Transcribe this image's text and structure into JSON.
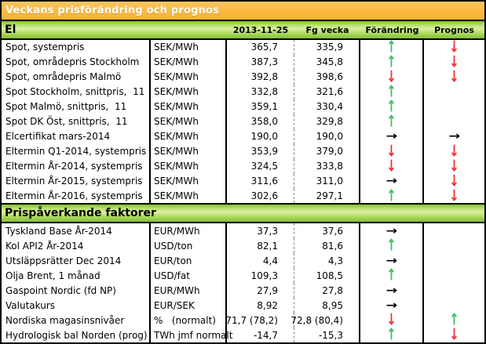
{
  "title": "Veckans prisförändring och prognos",
  "columns": {
    "date": "2013-11-25",
    "prev": "Fg vecka",
    "change": "Förändring",
    "forecast": "Prognos"
  },
  "arrows": {
    "up": "↑",
    "down": "↓",
    "right": "→"
  },
  "colors": {
    "header_orange": "#FBB83C",
    "section_green": "#9CCB3B",
    "arrow_up_green": "#3FBF63",
    "arrow_down_red": "#F13131",
    "arrow_right_black": "#000000"
  },
  "sections": [
    {
      "header": "El",
      "rows": [
        {
          "label": "Spot, systempris",
          "unit": "SEK/MWh",
          "current": "365,7",
          "previous": "335,9",
          "change": "up",
          "forecast": "down"
        },
        {
          "label": "Spot, områdepris Stockholm",
          "unit": "SEK/MWh",
          "current": "387,3",
          "previous": "345,8",
          "change": "up",
          "forecast": "down"
        },
        {
          "label": "Spot, områdepris Malmö",
          "unit": "SEK/MWh",
          "current": "392,8",
          "previous": "398,6",
          "change": "down",
          "forecast": "down"
        },
        {
          "label": "Spot Stockholm, snittpris,  11",
          "unit": "SEK/MWh",
          "current": "332,8",
          "previous": "321,6",
          "change": "up",
          "forecast": ""
        },
        {
          "label": "Spot Malmö, snittpris,  11",
          "unit": "SEK/MWh",
          "current": "359,1",
          "previous": "330,4",
          "change": "up",
          "forecast": ""
        },
        {
          "label": "Spot DK Öst, snittpris,  11",
          "unit": "SEK/MWh",
          "current": "358,0",
          "previous": "329,8",
          "change": "up",
          "forecast": ""
        },
        {
          "label": "Elcertifikat mars-2014",
          "unit": "SEK/MWh",
          "current": "190,0",
          "previous": "190,0",
          "change": "right",
          "forecast": "right"
        },
        {
          "label": "Eltermin Q1-2014, systempris",
          "unit": "SEK/MWh",
          "current": "353,9",
          "previous": "379,0",
          "change": "down",
          "forecast": "down"
        },
        {
          "label": "Eltermin År-2014, systempris",
          "unit": "SEK/MWh",
          "current": "324,5",
          "previous": "333,8",
          "change": "down",
          "forecast": "down"
        },
        {
          "label": "Eltermin År-2015, systempris",
          "unit": "SEK/MWh",
          "current": "311,6",
          "previous": "311,0",
          "change": "right",
          "forecast": "down"
        },
        {
          "label": "Eltermin År-2016, systempris",
          "unit": "SEK/MWh",
          "current": "302,6",
          "previous": "297,1",
          "change": "up",
          "forecast": "down"
        }
      ]
    },
    {
      "header": "Prispåverkande faktorer",
      "rows": [
        {
          "label": "Tyskland Base År-2014",
          "unit": "EUR/MWh",
          "current": "37,3",
          "previous": "37,6",
          "change": "right",
          "forecast": ""
        },
        {
          "label": "Kol API2 År-2014",
          "unit": "USD/ton",
          "current": "82,1",
          "previous": "81,6",
          "change": "up",
          "forecast": ""
        },
        {
          "label": "Utsläppsrätter Dec 2014",
          "unit": "EUR/ton",
          "current": "4,4",
          "previous": "4,3",
          "change": "right",
          "forecast": ""
        },
        {
          "label": "Olja Brent, 1 månad",
          "unit": "USD/fat",
          "current": "109,3",
          "previous": "108,5",
          "change": "up",
          "forecast": ""
        },
        {
          "label": "Gaspoint Nordic (fd NP)",
          "unit": "EUR/MWh",
          "current": "27,9",
          "previous": "27,8",
          "change": "right",
          "forecast": ""
        },
        {
          "label": "Valutakurs",
          "unit": "EUR/SEK",
          "current": "8,92",
          "previous": "8,95",
          "change": "right",
          "forecast": ""
        },
        {
          "label": "Nordiska magasinsnivåer",
          "unit": "%   (normalt)",
          "current": "71,7 (78,2)",
          "previous": "72,8 (80,4)",
          "change": "down",
          "forecast": "up"
        },
        {
          "label": "Hydrologisk bal Norden (prog)",
          "unit": "TWh jmf normalt",
          "current": "-14,7",
          "previous": "-15,3",
          "change": "up",
          "forecast": "down"
        }
      ]
    }
  ]
}
